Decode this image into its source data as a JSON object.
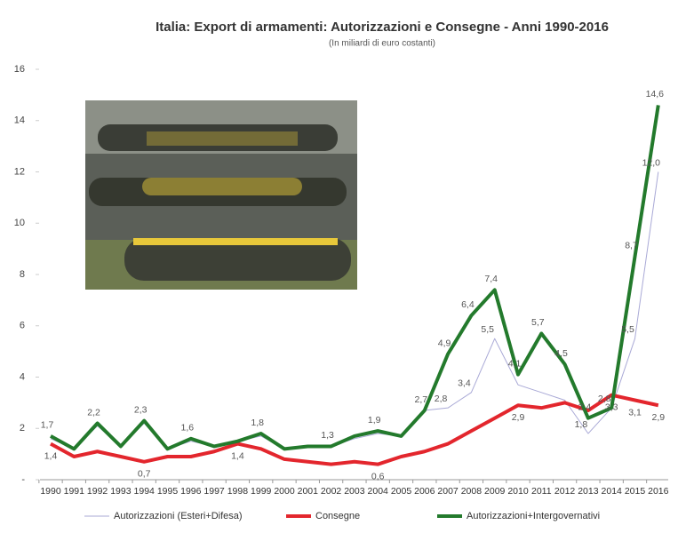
{
  "chart_data": {
    "type": "line",
    "title": "Italia: Export di armamenti: Autorizzazioni e Consegne - Anni 1990-2016",
    "subtitle": "(In miliardi di euro costanti)",
    "categories": [
      "1990",
      "1991",
      "1992",
      "1993",
      "1994",
      "1995",
      "1996",
      "1997",
      "1998",
      "1999",
      "2000",
      "2001",
      "2002",
      "2003",
      "2004",
      "2005",
      "2006",
      "2007",
      "2008",
      "2009",
      "2010",
      "2011",
      "2012",
      "2013",
      "2014",
      "2015",
      "2016"
    ],
    "ylim": [
      0,
      16
    ],
    "yticks": [
      {
        "value": 0,
        "label": "-"
      },
      2,
      4,
      6,
      8,
      10,
      12,
      14,
      16
    ],
    "series": [
      {
        "name": "Autorizzazioni (Esteri+Difesa)",
        "color": "#a9a9d6",
        "values": [
          1.6,
          1.2,
          2.1,
          1.3,
          2.2,
          1.2,
          1.5,
          1.3,
          1.5,
          1.7,
          1.2,
          1.3,
          1.3,
          1.6,
          1.8,
          1.7,
          2.7,
          2.8,
          3.4,
          5.5,
          3.7,
          3.4,
          3.1,
          1.8,
          2.8,
          5.5,
          12.0
        ],
        "value_labels": [
          null,
          null,
          null,
          null,
          null,
          null,
          null,
          null,
          null,
          null,
          null,
          null,
          null,
          null,
          null,
          null,
          null,
          "2,8",
          "3,4",
          "5,5",
          null,
          null,
          null,
          "1,8",
          "2,8",
          "5,5",
          "12,0"
        ]
      },
      {
        "name": "Consegne",
        "color": "#e3262d",
        "values": [
          1.4,
          0.9,
          1.1,
          0.9,
          0.7,
          0.9,
          0.9,
          1.1,
          1.4,
          1.2,
          0.8,
          0.7,
          0.6,
          0.7,
          0.6,
          0.9,
          1.1,
          1.4,
          1.9,
          2.4,
          2.9,
          2.8,
          3.0,
          2.7,
          3.3,
          3.1,
          2.9
        ],
        "value_labels": [
          "1,4",
          null,
          null,
          null,
          "0,7",
          null,
          null,
          null,
          "1,4",
          null,
          null,
          null,
          null,
          null,
          "0,6",
          null,
          null,
          null,
          null,
          null,
          "2,9",
          null,
          null,
          null,
          "3,3",
          "3,1",
          "2,9"
        ]
      },
      {
        "name": "Autorizzazioni+Intergovernativi",
        "color": "#237a2c",
        "values": [
          1.7,
          1.2,
          2.2,
          1.3,
          2.3,
          1.2,
          1.6,
          1.3,
          1.5,
          1.8,
          1.2,
          1.3,
          1.3,
          1.7,
          1.9,
          1.7,
          2.7,
          4.9,
          6.4,
          7.4,
          4.1,
          5.7,
          4.5,
          2.4,
          2.8,
          8.7,
          14.6
        ],
        "value_labels": [
          "1,7",
          null,
          "2,2",
          null,
          "2,3",
          null,
          "1,6",
          null,
          null,
          "1,8",
          null,
          null,
          "1,3",
          null,
          "1,9",
          null,
          "2,7",
          "4,9",
          "6,4",
          "7,4",
          "4,1",
          "5,7",
          "4,5",
          "2,4",
          null,
          "8,7",
          "14,6"
        ]
      }
    ]
  }
}
